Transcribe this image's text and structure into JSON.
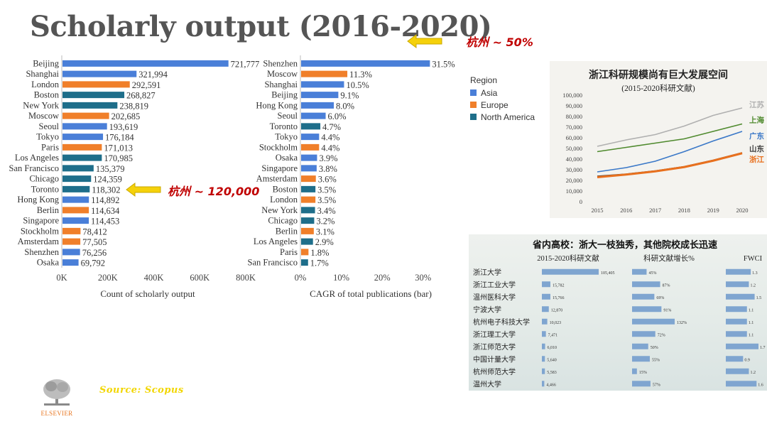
{
  "title": "Scholarly output (2016-2020)",
  "callouts": {
    "top": "杭州 ~ 50%",
    "mid": "杭州 ~ 120,000"
  },
  "source": "Source: Scopus",
  "logo_text": "ELSEVIER",
  "colors": {
    "asia": "#4a7fd8",
    "europe": "#f07f2a",
    "north_america": "#1e6e8a",
    "arrow": "#f5d10a",
    "callout": "#c00000"
  },
  "legend": {
    "title": "Region",
    "items": [
      {
        "label": "Asia",
        "color": "#4a7fd8"
      },
      {
        "label": "Europe",
        "color": "#f07f2a"
      },
      {
        "label": "North America",
        "color": "#1e6e8a"
      }
    ]
  },
  "chart_data": [
    {
      "type": "bar",
      "orientation": "horizontal",
      "xlabel": "Count of scholarly output",
      "ticks": [
        "0K",
        "200K",
        "400K",
        "600K",
        "800K"
      ],
      "xlim": [
        0,
        800000
      ],
      "categories": [
        "Beijing",
        "Shanghai",
        "London",
        "Boston",
        "New York",
        "Moscow",
        "Seoul",
        "Tokyo",
        "Paris",
        "Los Angeles",
        "San Francisco",
        "Chicago",
        "Toronto",
        "Hong Kong",
        "Berlin",
        "Singapore",
        "Stockholm",
        "Amsterdam",
        "Shenzhen",
        "Osaka"
      ],
      "values": [
        721777,
        321994,
        292591,
        268827,
        238819,
        202685,
        193619,
        176184,
        171013,
        170985,
        135379,
        124359,
        118302,
        114892,
        114634,
        114453,
        78412,
        77505,
        76256,
        69792
      ],
      "labels": [
        "721,777",
        "321,994",
        "292,591",
        "268,827",
        "238,819",
        "202,685",
        "193,619",
        "176,184",
        "171,013",
        "170,985",
        "135,379",
        "124,359",
        "118,302",
        "114,892",
        "114,634",
        "114,453",
        "78,412",
        "77,505",
        "76,256",
        "69,792"
      ],
      "regions": [
        "asia",
        "asia",
        "europe",
        "north_america",
        "north_america",
        "europe",
        "asia",
        "asia",
        "europe",
        "north_america",
        "north_america",
        "north_america",
        "north_america",
        "asia",
        "europe",
        "asia",
        "europe",
        "europe",
        "asia",
        "asia"
      ]
    },
    {
      "type": "bar",
      "orientation": "horizontal",
      "xlabel": "CAGR of total publications (bar)",
      "ticks": [
        "0%",
        "10%",
        "20%",
        "30%"
      ],
      "xlim": [
        0,
        33
      ],
      "categories": [
        "Shenzhen",
        "Moscow",
        "Shanghai",
        "Beijing",
        "Hong Kong",
        "Seoul",
        "Toronto",
        "Tokyo",
        "Stockholm",
        "Osaka",
        "Singapore",
        "Amsterdam",
        "Boston",
        "London",
        "New York",
        "Chicago",
        "Berlin",
        "Los Angeles",
        "Paris",
        "San Francisco"
      ],
      "values": [
        31.5,
        11.3,
        10.5,
        9.1,
        8.0,
        6.0,
        4.7,
        4.4,
        4.4,
        3.9,
        3.8,
        3.6,
        3.5,
        3.5,
        3.4,
        3.2,
        3.1,
        2.9,
        1.8,
        1.7
      ],
      "labels": [
        "31.5%",
        "11.3%",
        "10.5%",
        "9.1%",
        "8.0%",
        "6.0%",
        "4.7%",
        "4.4%",
        "4.4%",
        "3.9%",
        "3.8%",
        "3.6%",
        "3.5%",
        "3.5%",
        "3.4%",
        "3.2%",
        "3.1%",
        "2.9%",
        "1.8%",
        "1.7%"
      ],
      "regions": [
        "asia",
        "europe",
        "asia",
        "asia",
        "asia",
        "asia",
        "north_america",
        "asia",
        "europe",
        "asia",
        "asia",
        "europe",
        "north_america",
        "europe",
        "north_america",
        "north_america",
        "europe",
        "north_america",
        "europe",
        "north_america"
      ]
    },
    {
      "type": "line",
      "title": "浙江科研规模尚有巨大发展空间",
      "subtitle": "(2015-2020科研文献)",
      "x": [
        "2015",
        "2016",
        "2017",
        "2018",
        "2019",
        "2020"
      ],
      "ylim": [
        0,
        100000
      ],
      "yticks": [
        "0",
        "10,000",
        "20,000",
        "30,000",
        "40,000",
        "50,000",
        "60,000",
        "70,000",
        "80,000",
        "90,000",
        "100,000"
      ],
      "series": [
        {
          "name": "江苏",
          "color": "#b0b0b0",
          "values": [
            52000,
            58000,
            63000,
            71000,
            81000,
            88000
          ]
        },
        {
          "name": "上海",
          "color": "#4f8a2e",
          "values": [
            47000,
            51000,
            55000,
            59000,
            66000,
            73000
          ]
        },
        {
          "name": "广东",
          "color": "#3a78c8",
          "values": [
            28000,
            32000,
            38000,
            47000,
            57000,
            66000
          ]
        },
        {
          "name": "山东",
          "color": "#404040",
          "values": [
            24000,
            26000,
            29000,
            33000,
            39000,
            46000
          ]
        },
        {
          "name": "浙江",
          "color": "#e8701e",
          "values": [
            23000,
            25500,
            28500,
            32500,
            38500,
            45500
          ]
        }
      ]
    },
    {
      "type": "table",
      "title": "省内高校：浙大一枝独秀，其他院校成长迅速",
      "columns": [
        "2015-2020科研文献",
        "科研文献增长%",
        "FWCI"
      ],
      "rows": [
        {
          "name": "浙江大学",
          "output": 105405,
          "output_label": "105,405",
          "growth": 45,
          "growth_label": "45%",
          "fwci": 1.3,
          "fwci_label": "1.3"
        },
        {
          "name": "浙江工业大学",
          "output": 15782,
          "output_label": "15,782",
          "growth": 87,
          "growth_label": "87%",
          "fwci": 1.2,
          "fwci_label": "1.2"
        },
        {
          "name": "温州医科大学",
          "output": 15766,
          "output_label": "15,766",
          "growth": 69,
          "growth_label": "69%",
          "fwci": 1.5,
          "fwci_label": "1.5"
        },
        {
          "name": "宁波大学",
          "output": 12870,
          "output_label": "12,870",
          "growth": 91,
          "growth_label": "91%",
          "fwci": 1.1,
          "fwci_label": "1.1"
        },
        {
          "name": "杭州电子科技大学",
          "output": 10023,
          "output_label": "10,023",
          "growth": 132,
          "growth_label": "132%",
          "fwci": 1.1,
          "fwci_label": "1.1"
        },
        {
          "name": "浙江理工大学",
          "output": 7471,
          "output_label": "7,471",
          "growth": 72,
          "growth_label": "72%",
          "fwci": 1.1,
          "fwci_label": "1.1"
        },
        {
          "name": "浙江师范大学",
          "output": 6010,
          "output_label": "6,010",
          "growth": 50,
          "growth_label": "50%",
          "fwci": 1.7,
          "fwci_label": "1.7"
        },
        {
          "name": "中国计量大学",
          "output": 5640,
          "output_label": "5,640",
          "growth": 55,
          "growth_label": "55%",
          "fwci": 0.9,
          "fwci_label": "0.9"
        },
        {
          "name": "杭州师范大学",
          "output": 5583,
          "output_label": "5,583",
          "growth": 15,
          "growth_label": "15%",
          "fwci": 1.2,
          "fwci_label": "1.2"
        },
        {
          "name": "温州大学",
          "output": 4466,
          "output_label": "4,466",
          "growth": 57,
          "growth_label": "57%",
          "fwci": 1.6,
          "fwci_label": "1.6"
        }
      ]
    }
  ]
}
